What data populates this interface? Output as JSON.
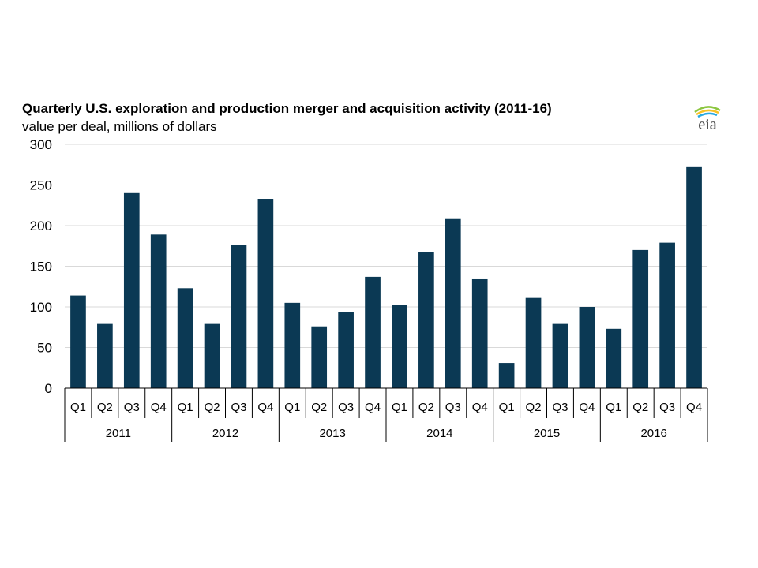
{
  "chart_data": {
    "type": "bar",
    "title": "Quarterly U.S. exploration and production merger and acquisition activity (2011-16)",
    "subtitle": "value per deal, millions of dollars",
    "years": [
      "2011",
      "2012",
      "2013",
      "2014",
      "2015",
      "2016"
    ],
    "quarters": [
      "Q1",
      "Q2",
      "Q3",
      "Q4"
    ],
    "values": [
      114,
      79,
      240,
      189,
      123,
      79,
      176,
      233,
      105,
      76,
      94,
      137,
      102,
      167,
      209,
      134,
      31,
      111,
      79,
      100,
      73,
      170,
      179,
      272
    ],
    "ylim": [
      0,
      300
    ],
    "yticks": [
      0,
      50,
      100,
      150,
      200,
      250,
      300
    ],
    "grid": true,
    "bar_color": "#0b3954"
  },
  "logo": {
    "text": "eia"
  }
}
